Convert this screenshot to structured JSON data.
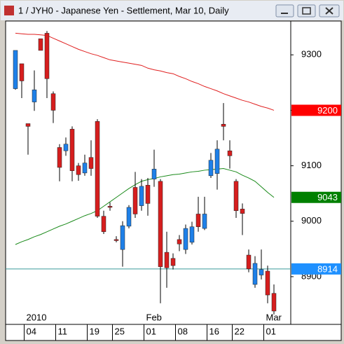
{
  "chart_data": {
    "type": "candlestick",
    "title": "1 / JYH0 - Japanese Yen - Settlement, Mar 10, Daily",
    "categories": [
      null,
      null,
      "04",
      null,
      null,
      null,
      null,
      "11",
      null,
      null,
      null,
      null,
      "19",
      null,
      null,
      null,
      "25",
      null,
      null,
      null,
      null,
      "01",
      null,
      null,
      null,
      null,
      "08",
      null,
      null,
      null,
      null,
      "16",
      null,
      null,
      null,
      "22",
      null,
      null,
      null,
      null,
      "01",
      null
    ],
    "period_labels": {
      "2": "2010",
      "21": "Feb",
      "40": "Mar"
    },
    "ohlc": [
      [
        9239,
        9308,
        9237,
        9308
      ],
      [
        9284,
        9284,
        9222,
        9253
      ],
      [
        9176,
        9176,
        9120,
        9171
      ],
      [
        9215,
        9272,
        9199,
        9237
      ],
      [
        9329,
        9329,
        9308,
        9308
      ],
      [
        9339,
        9343,
        9222,
        9257
      ],
      [
        9230,
        9234,
        9177,
        9200
      ],
      [
        9133,
        9139,
        9072,
        9097
      ],
      [
        9127,
        9151,
        9118,
        9139
      ],
      [
        9166,
        9171,
        9072,
        9091
      ],
      [
        9100,
        9105,
        9073,
        9084
      ],
      [
        9087,
        9120,
        9082,
        9105
      ],
      [
        9115,
        9146,
        9082,
        9095
      ],
      [
        9180,
        9184,
        9006,
        9009
      ],
      [
        9009,
        9019,
        8977,
        8981
      ],
      [
        9027,
        9034,
        9019,
        9025
      ],
      [
        8967,
        8973,
        8962,
        8965
      ],
      [
        8949,
        9000,
        8918,
        8992
      ],
      [
        8991,
        9029,
        8987,
        9025
      ],
      [
        9061,
        9089,
        9006,
        9013
      ],
      [
        9028,
        9076,
        9019,
        9063
      ],
      [
        9065,
        9078,
        9010,
        9032
      ],
      [
        9076,
        9129,
        9062,
        9094
      ],
      [
        9072,
        9076,
        8852,
        8918
      ],
      [
        8944,
        8981,
        8880,
        8916
      ],
      [
        8933,
        8942,
        8913,
        8920
      ],
      [
        8967,
        8975,
        8946,
        8959
      ],
      [
        8949,
        8994,
        8941,
        8987
      ],
      [
        8962,
        8999,
        8958,
        8990
      ],
      [
        9013,
        9044,
        8981,
        8990
      ],
      [
        8987,
        9044,
        8984,
        9013
      ],
      [
        9082,
        9123,
        9078,
        9110
      ],
      [
        9086,
        9146,
        9057,
        9130
      ],
      [
        9175,
        9213,
        9146,
        9171
      ],
      [
        9127,
        9146,
        9095,
        9118
      ],
      [
        9072,
        9076,
        9006,
        9019
      ],
      [
        9022,
        9032,
        8975,
        9014
      ],
      [
        8939,
        8949,
        8908,
        8914
      ],
      [
        8886,
        8937,
        8880,
        8924
      ],
      [
        8903,
        8949,
        8895,
        8913
      ],
      [
        8910,
        8920,
        8852,
        8867
      ],
      [
        8870,
        8886,
        8832,
        8838
      ]
    ],
    "up_color": "#1e80e8",
    "down_color": "#d61e1e",
    "series": [
      {
        "color": "#e02020",
        "values": [
          9339,
          9338,
          9337,
          9337,
          9336,
          9335,
          9330,
          9325,
          9320,
          9315,
          9310,
          9306,
          9302,
          9299,
          9295,
          9291,
          9289,
          9287,
          9285,
          9283,
          9281,
          9276,
          9273,
          9271,
          9268,
          9266,
          9261,
          9257,
          9252,
          9248,
          9243,
          9239,
          9235,
          9230,
          9226,
          9222,
          9218,
          9215,
          9211,
          9207,
          9204,
          9200
        ]
      },
      {
        "color": "#1a8a1a",
        "values": [
          8958,
          8963,
          8967,
          8972,
          8976,
          8981,
          8986,
          8991,
          8995,
          9000,
          9005,
          9010,
          9014,
          9019,
          9027,
          9035,
          9043,
          9051,
          9059,
          9066,
          9072,
          9075,
          9077,
          9080,
          9082,
          9084,
          9085,
          9087,
          9089,
          9090,
          9092,
          9093,
          9094,
          9095,
          9092,
          9089,
          9083,
          9078,
          9072,
          9062,
          9052,
          9043
        ]
      }
    ],
    "markers": [
      {
        "value": 9200,
        "color": "#ff0000"
      },
      {
        "value": 9043,
        "color": "#008000"
      },
      {
        "value": 8914,
        "color": "#1e90ff",
        "line_color": "#3a9a9a"
      }
    ],
    "ylim": [
      8814,
      9361
    ],
    "yticks": [
      8900,
      9000,
      9100,
      9200,
      9300
    ],
    "grid": false
  }
}
